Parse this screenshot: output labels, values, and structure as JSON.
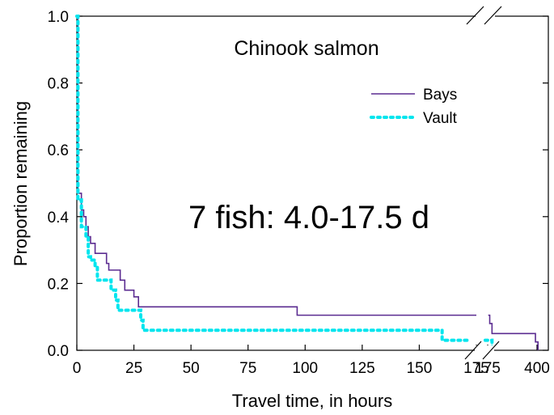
{
  "chart_data": {
    "type": "line",
    "title": "Chinook salmon",
    "annotation": "7 fish: 4.0-17.5 d",
    "xlabel": "Travel time, in hours",
    "ylabel": "Proportion remaining",
    "ylim": [
      0,
      1
    ],
    "y_ticks": [
      "0.0",
      "0.2",
      "0.4",
      "0.6",
      "0.8",
      "1.0"
    ],
    "x_axis": {
      "broken": true,
      "segment1": {
        "range": [
          0,
          175
        ],
        "ticks": [
          "0",
          "25",
          "50",
          "75",
          "100",
          "125",
          "150",
          "175"
        ]
      },
      "segment2": {
        "ticks": [
          "175",
          "400"
        ]
      }
    },
    "legend_position": "top-right",
    "series": [
      {
        "name": "Bays",
        "color": "#5b2c91",
        "style": "solid",
        "steps": [
          [
            0,
            1.0
          ],
          [
            0.5,
            0.47
          ],
          [
            2,
            0.42
          ],
          [
            3,
            0.4
          ],
          [
            4,
            0.37
          ],
          [
            5,
            0.34
          ],
          [
            6,
            0.32
          ],
          [
            8,
            0.29
          ],
          [
            13,
            0.26
          ],
          [
            14,
            0.24
          ],
          [
            19,
            0.21
          ],
          [
            21,
            0.18
          ],
          [
            25,
            0.16
          ],
          [
            27,
            0.13
          ],
          [
            96,
            0.13
          ],
          [
            96.5,
            0.105
          ],
          [
            175,
            0.105
          ]
        ],
        "tail_steps": [
          [
            180,
            0.105
          ],
          [
            182,
            0.08
          ],
          [
            185,
            0.05
          ],
          [
            390,
            0.05
          ],
          [
            392,
            0.025
          ],
          [
            404,
            0.025
          ],
          [
            405,
            0.0
          ]
        ]
      },
      {
        "name": "Vault",
        "color": "#00e5ee",
        "style": "dotted",
        "steps": [
          [
            0,
            1.0
          ],
          [
            0.5,
            0.45
          ],
          [
            2,
            0.37
          ],
          [
            4,
            0.34
          ],
          [
            5,
            0.28
          ],
          [
            6,
            0.27
          ],
          [
            8,
            0.25
          ],
          [
            9,
            0.21
          ],
          [
            14,
            0.21
          ],
          [
            15,
            0.18
          ],
          [
            17,
            0.15
          ],
          [
            18,
            0.12
          ],
          [
            27,
            0.12
          ],
          [
            28,
            0.09
          ],
          [
            29,
            0.06
          ],
          [
            159,
            0.06
          ],
          [
            160,
            0.03
          ],
          [
            171,
            0.03
          ]
        ],
        "tail_steps": [
          [
            176,
            0.03
          ],
          [
            180,
            0.03
          ],
          [
            183,
            0.03
          ],
          [
            185,
            0.0
          ]
        ]
      }
    ]
  }
}
